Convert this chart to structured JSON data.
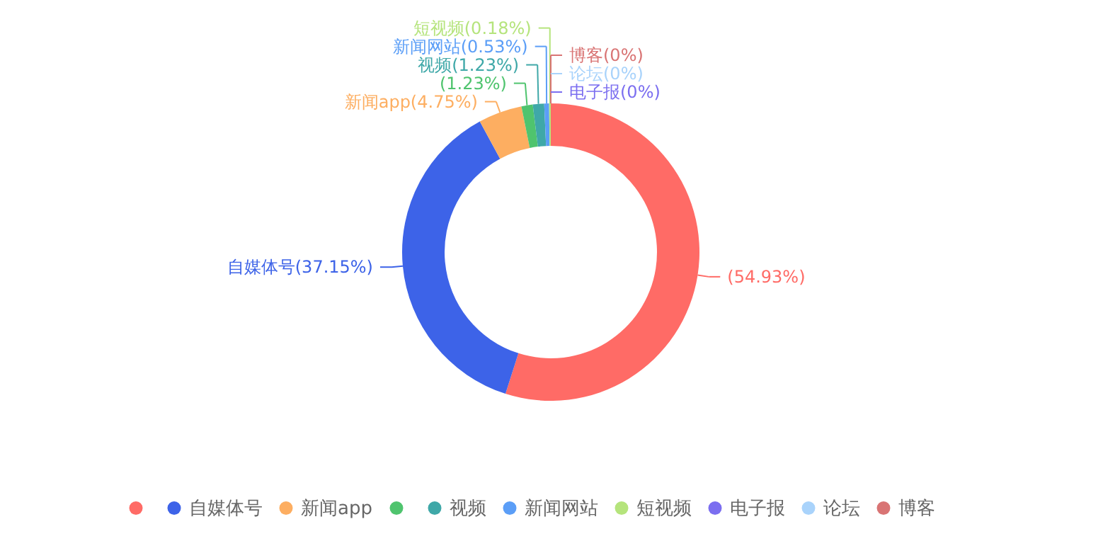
{
  "chart_data": {
    "type": "donut",
    "categories": [
      null,
      "自媒体号",
      "新闻app",
      null,
      "视频",
      "新闻网站",
      "短视频",
      "电子报",
      "论坛",
      "博客"
    ],
    "values": [
      54.93,
      37.15,
      4.75,
      1.23,
      1.23,
      0.53,
      0.18,
      0,
      0,
      0
    ],
    "colors": [
      "#ff6b66",
      "#3d63e8",
      "#fdae61",
      "#4fc46e",
      "#3fa8a8",
      "#5b9ef7",
      "#b5e47c",
      "#7b6ef0",
      "#a9d3fb",
      "#d97474"
    ],
    "value_labels": [
      "(54.93%)",
      "自媒体号(37.15%)",
      "新闻app(4.75%)",
      "(1.23%)",
      "视频(1.23%)",
      "新闻网站(0.53%)",
      "短视频(0.18%)",
      "电子报(0%)",
      "论坛(0%)",
      "博客(0%)"
    ],
    "legend": "bottom"
  }
}
